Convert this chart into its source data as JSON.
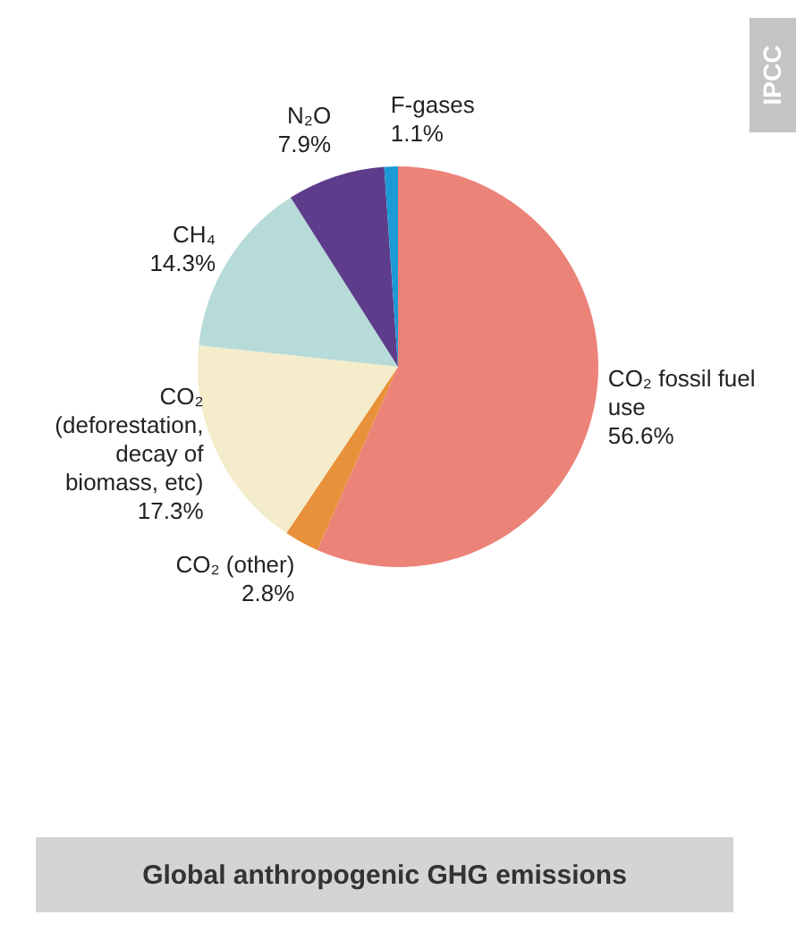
{
  "chart_data": {
    "type": "pie",
    "title": "Global anthropogenic GHG emissions",
    "categories": [
      "CO₂ fossil fuel use",
      "CO₂ (other)",
      "CO₂ (deforestation, decay of biomass, etc)",
      "CH₄",
      "N₂O",
      "F-gases"
    ],
    "values": [
      56.6,
      2.8,
      17.3,
      14.3,
      7.9,
      1.1
    ],
    "value_labels": [
      "56.6%",
      "2.8%",
      "17.3%",
      "14.3%",
      "7.9%",
      "1.1%"
    ],
    "colors": [
      "#eb8378",
      "#e8913a",
      "#f4eccb",
      "#b7dbd8",
      "#5d3d8b",
      "#1b9ad6"
    ],
    "annotations": [
      "IPCC"
    ],
    "legend": false
  }
}
